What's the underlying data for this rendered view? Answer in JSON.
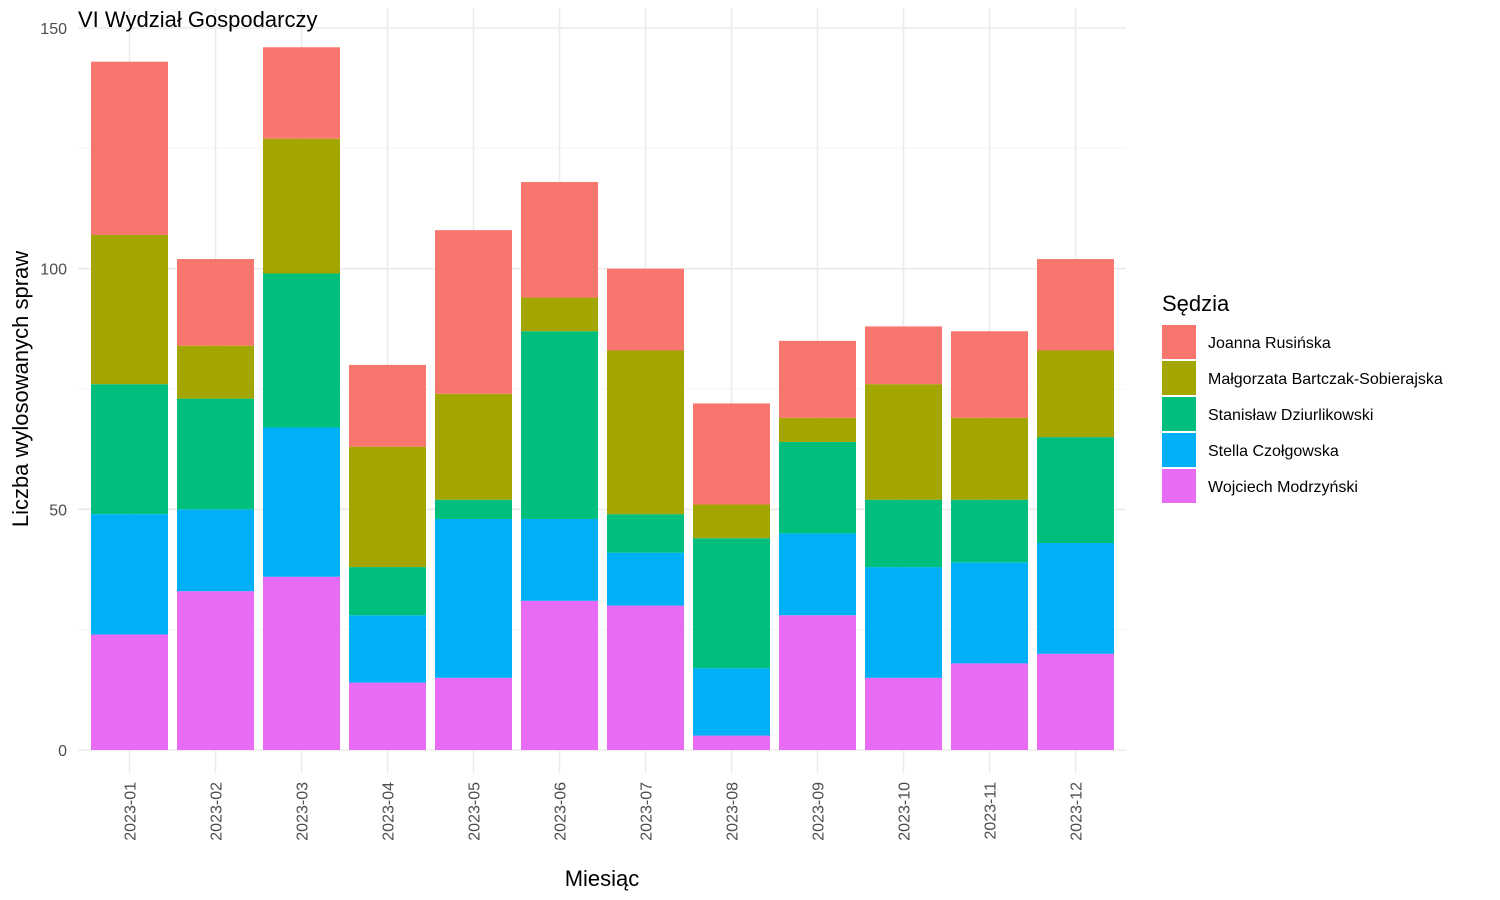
{
  "chart_data": {
    "type": "bar",
    "stacked": true,
    "title": "VI Wydział Gospodarczy",
    "xlabel": "Miesiąc",
    "ylabel": "Liczba wylosowanych spraw",
    "ylim": [
      0,
      150
    ],
    "yticks": [
      0,
      50,
      100,
      150
    ],
    "grid": true,
    "legend_position": "right",
    "legend_title": "Sędzia",
    "categories": [
      "2023-01",
      "2023-02",
      "2023-03",
      "2023-04",
      "2023-05",
      "2023-06",
      "2023-07",
      "2023-08",
      "2023-09",
      "2023-10",
      "2023-11",
      "2023-12"
    ],
    "series": [
      {
        "name": "Joanna Rusińska",
        "color": "#F8766D",
        "values": [
          36,
          18,
          19,
          17,
          34,
          24,
          17,
          21,
          16,
          12,
          18,
          19
        ]
      },
      {
        "name": "Małgorzata Bartczak-Sobierajska",
        "color": "#A3A500",
        "values": [
          31,
          11,
          28,
          25,
          22,
          7,
          34,
          7,
          5,
          24,
          17,
          18
        ]
      },
      {
        "name": "Stanisław Dziurlikowski",
        "color": "#00BF7D",
        "values": [
          27,
          23,
          32,
          10,
          4,
          39,
          8,
          27,
          19,
          14,
          13,
          22
        ]
      },
      {
        "name": "Stella Czołgowska",
        "color": "#00B0F6",
        "values": [
          25,
          17,
          31,
          14,
          33,
          17,
          11,
          14,
          17,
          23,
          21,
          23
        ]
      },
      {
        "name": "Wojciech Modrzyński",
        "color": "#E76BF3",
        "values": [
          24,
          33,
          36,
          14,
          15,
          31,
          30,
          3,
          28,
          15,
          18,
          20
        ]
      }
    ]
  }
}
